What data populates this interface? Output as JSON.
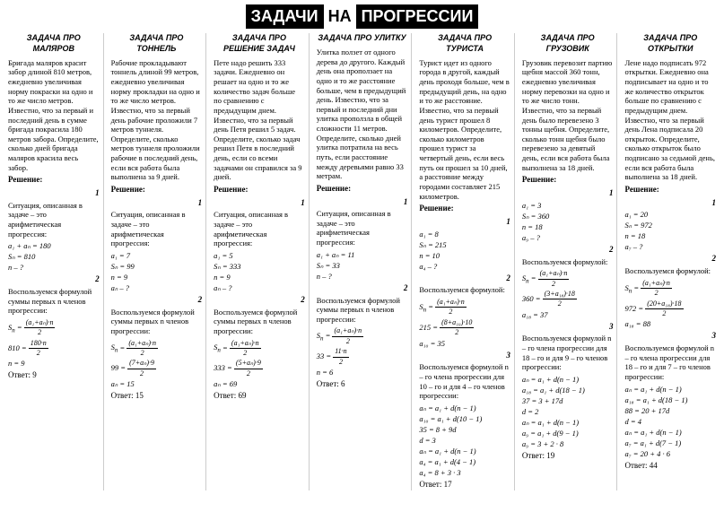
{
  "title": {
    "w1": "ЗАДАЧИ",
    "w2": "НА",
    "w3": "ПРОГРЕССИИ"
  },
  "cols": [
    {
      "title": "ЗАДАЧА ПРО МАЛЯРОВ",
      "problem": "Бригада маляров красит забор длиной 810 метров, ежедневно увеличивая норму покраски на одно и то же число метров. Известно, что за первый и последний день в сумме бригада покрасила 180 метров забора. Определите, сколько дней бригада маляров красила весь забор.",
      "sol_label": "Решение:",
      "step1": "1",
      "desc1": "Ситуация, описанная в задаче – это арифметическая прогрессия:",
      "f1": "a₁ + aₙ = 180",
      "f2": "Sₙ = 810",
      "f3": "n – ?",
      "step2": "2",
      "desc2": "Воспользуемся формулой суммы первых n членов прогрессии:",
      "f4": "Sₙ = (a₁+aₙ)·n / 2",
      "f5": "810 = 180·n / 2",
      "f6": "n = 9",
      "answer": "Ответ: 9"
    },
    {
      "title": "ЗАДАЧА ПРО ТОННЕЛЬ",
      "problem": "Рабочие прокладывают тоннель длиной 99 метров, ежедневно увеличивая норму прокладки на одно и то же число метров. Известно, что за первый день рабочие проложили 7 метров туннеля. Определите, сколько метров туннеля проложили рабочие в последний день, если вся работа была выполнена за 9 дней.",
      "sol_label": "Решение:",
      "step1": "1",
      "desc1": "Ситуация, описанная в задаче – это арифметическая прогрессия:",
      "f1": "a₁ = 7",
      "f2": "Sₙ = 99",
      "f3": "n = 9",
      "f4": "aₙ – ?",
      "step2": "2",
      "desc2": "Воспользуемся формулой суммы первых n членов прогрессии:",
      "f5": "Sₙ = (a₁+aₙ)·n / 2",
      "f6": "99 = (7+aₙ)·9 / 2",
      "f7": "aₙ = 15",
      "answer": "Ответ: 15"
    },
    {
      "title": "ЗАДАЧА ПРО РЕШЕНИЕ ЗАДАЧ",
      "problem": "Пете надо решить 333 задачи. Ежедневно он решает на одно и то же количество задач больше по сравнению с предыдущим днем. Известно, что за первый день Петя решил 5 задач. Определите, сколько задач решил Петя в последний день, если со всеми задачами он справился за 9 дней.",
      "sol_label": "Решение:",
      "step1": "1",
      "desc1": "Ситуация, описанная в задаче – это арифметическая прогрессия:",
      "f1": "a₁ = 5",
      "f2": "Sₙ = 333",
      "f3": "n = 9",
      "f4": "aₙ – ?",
      "step2": "2",
      "desc2": "Воспользуемся формулой суммы первых n членов прогрессии:",
      "f5": "Sₙ = (a₁+aₙ)·n / 2",
      "f6": "333 = (5+aₙ)·9 / 2",
      "f7": "aₙ = 69",
      "answer": "Ответ: 69"
    },
    {
      "title": "ЗАДАЧА ПРО УЛИТКУ",
      "problem": "Улитка ползет от одного дерева до другого. Каждый день она проползает на одно и то же расстояние больше, чем в предыдущий день. Известно, что за первый и последний дни улитка проползла в общей сложности 11 метров. Определите, сколько дней улитка потратила на весь путь, если расстояние между деревьями равно 33 метрам.",
      "sol_label": "Решение:",
      "step1": "1",
      "desc1": "Ситуация, описанная в задаче – это арифметическая прогрессия:",
      "f1": "a₁ + aₙ = 11",
      "f2": "Sₙ = 33",
      "f3": "n – ?",
      "step2": "2",
      "desc2": "Воспользуемся формулой суммы первых n членов прогрессии:",
      "f4": "Sₙ = (a₁+aₙ)·n / 2",
      "f5": "33 = 11·n / 2",
      "f6": "n = 6",
      "answer": "Ответ: 6"
    },
    {
      "title": "ЗАДАЧА ПРО ТУРИСТА",
      "problem": "Турист идет из одного города в другой, каждый день проходя больше, чем в предыдущий день, на одно и то же расстояние. Известно, что за первый день турист прошел 8 километров. Определите, сколько километров прошел турист за четвертый день, если весь путь он прошел за 10 дней, а расстояние между городами составляет 215 километров.",
      "sol_label": "Решение:",
      "step1": "1",
      "f1": "a₁ = 8",
      "f2": "Sₙ = 215",
      "f3": "n = 10",
      "f4": "a₄ – ?",
      "step2": "2",
      "desc2": "Воспользуемся формулой:",
      "f5": "Sₙ = (a₁+aₙ)·n / 2",
      "f6": "215 = (8+a₁₀)·10 / 2",
      "f7": "a₁₀ = 35",
      "step3": "3",
      "desc3": "Воспользуемся формулой n – го члена прогрессии для 10 – го и для 4 – го членов прогрессии:",
      "f8": "aₙ = a₁ + d(n − 1)",
      "f9": "a₁₀ = a₁ + d(10 − 1)",
      "f10": "35 = 8 + 9d",
      "f11": "d = 3",
      "f12": "aₙ = a₁ + d(n − 1)",
      "f13": "a₄ = a₁ + d(4 − 1)",
      "f14": "a₄ = 8 + 3 · 3",
      "answer": "Ответ: 17"
    },
    {
      "title": "ЗАДАЧА ПРО ГРУЗОВИК",
      "problem": "Грузовик перевозит партию щебня массой 360 тонн, ежедневно увеличивая норму перевозки на одно и то же число тонн. Известно, что за первый день было перевезено 3 тонны щебня. Определите, сколько тонн щебня было перевезено за девятый день, если вся работа была выполнена за 18 дней.",
      "sol_label": "Решение:",
      "step1": "1",
      "f1": "a₁ = 3",
      "f2": "Sₙ = 360",
      "f3": "n = 18",
      "f4": "a₉ – ?",
      "step2": "2",
      "desc2": "Воспользуемся формулой:",
      "f5": "Sₙ = (a₁+aₙ)·n / 2",
      "f6": "360 = (3+a₁₈)·18 / 2",
      "f7": "a₁₈ = 37",
      "step3": "3",
      "desc3": "Воспользуемся формулой n – го члена прогрессии для 18 – го и для 9 – го членов прогрессии:",
      "f8": "aₙ = a₁ + d(n − 1)",
      "f9": "a₁₈ = a₁ + d(18 − 1)",
      "f10": "37 = 3 + 17d",
      "f11": "d = 2",
      "f12": "aₙ = a₁ + d(n − 1)",
      "f13": "a₉ = a₁ + d(9 − 1)",
      "f14": "a₉ = 3 + 2 · 8",
      "answer": "Ответ: 19"
    },
    {
      "title": "ЗАДАЧА ПРО ОТКРЫТКИ",
      "problem": "Лене надо подписать 972 открытки. Ежедневно она подписывает на одно и то же количество открыток больше по сравнению с предыдущим днем. Известно, что за первый день Лена подписала 20 открыток. Определите, сколько открыток было подписано за седьмой день, если вся работа была выполнена за 18 дней.",
      "sol_label": "Решение:",
      "step1": "1",
      "f1": "a₁ = 20",
      "f2": "Sₙ = 972",
      "f3": "n = 18",
      "f4": "a₇ – ?",
      "step2": "2",
      "desc2": "Воспользуемся формулой:",
      "f5": "Sₙ = (a₁+aₙ)·n / 2",
      "f6": "972 = (20+a₁₈)·18 / 2",
      "f7": "a₁₈ = 88",
      "step3": "3",
      "desc3": "Воспользуемся формулой n – го члена прогрессии для 18 – го и для 7 – го членов прогрессии:",
      "f8": "aₙ = a₁ + d(n − 1)",
      "f9": "a₁₈ = a₁ + d(18 − 1)",
      "f10": "88 = 20 + 17d",
      "f11": "d = 4",
      "f12": "aₙ = a₁ + d(n − 1)",
      "f13": "a₇ = a₁ + d(7 − 1)",
      "f14": "a₇ = 20 + 4 · 6",
      "answer": "Ответ: 44"
    }
  ]
}
